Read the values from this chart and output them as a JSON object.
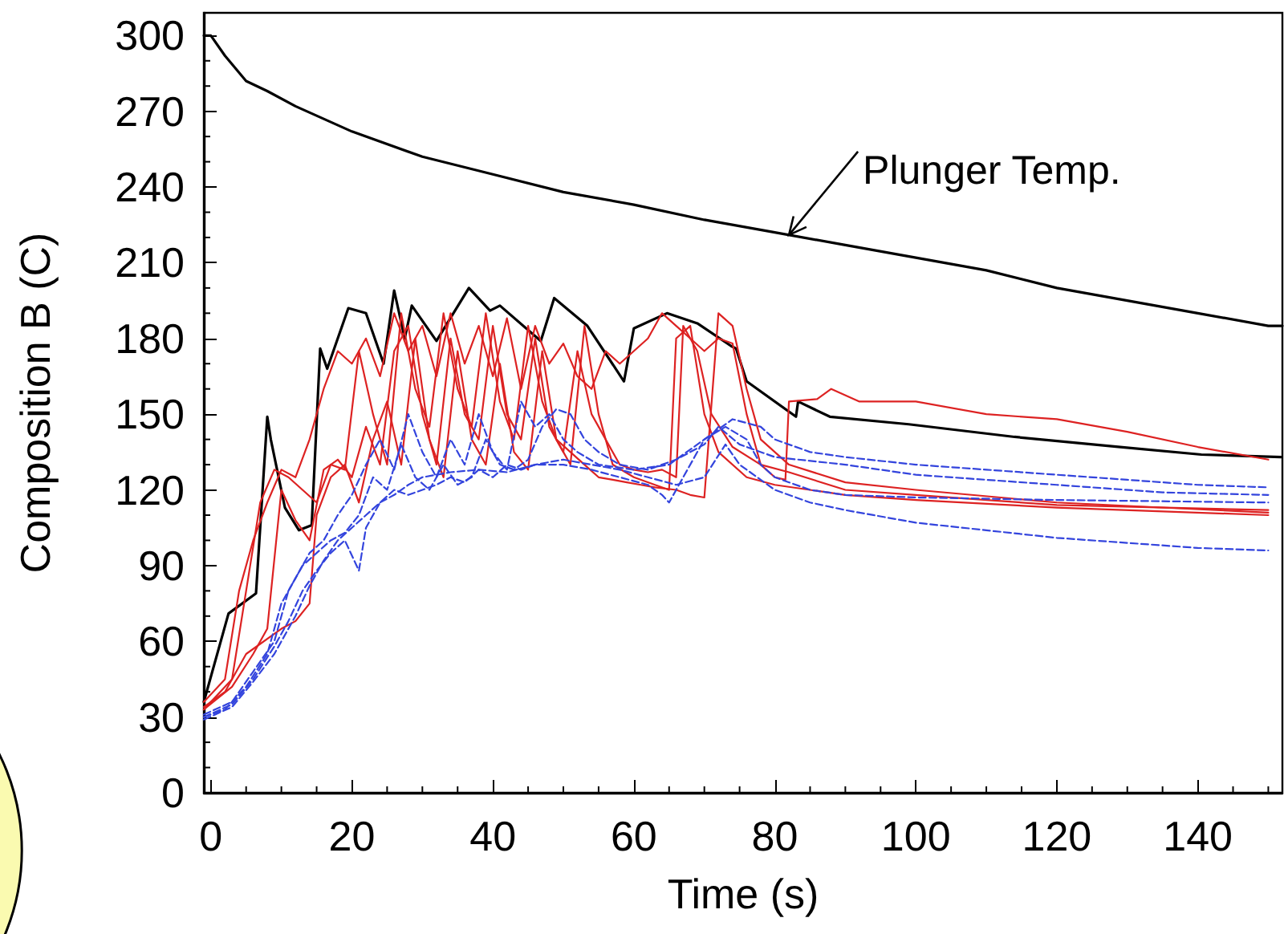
{
  "chart_data": {
    "type": "line",
    "xlabel": "Time (s)",
    "ylabel": "Composition B (C)",
    "xlim": [
      -1,
      152
    ],
    "ylim": [
      0,
      309
    ],
    "xticks": [
      0,
      20,
      40,
      60,
      80,
      100,
      120,
      140
    ],
    "yticks": [
      0,
      30,
      60,
      90,
      120,
      150,
      180,
      210,
      240,
      270,
      300
    ],
    "marker": "none",
    "annotations": [
      {
        "text": "Plunger Temp.",
        "x": 82,
        "y": 221
      }
    ],
    "series": [
      {
        "color": "#000000",
        "line_style": "solid",
        "x": [
          -1,
          0,
          2,
          5,
          8,
          12,
          20,
          30,
          40,
          50,
          60,
          70,
          80,
          90,
          100,
          110,
          120,
          130,
          140,
          150,
          152
        ],
        "values": [
          300,
          300,
          292,
          282,
          278,
          272,
          262,
          252,
          245,
          238,
          233,
          227,
          222,
          217,
          212,
          207,
          200,
          195,
          190,
          185,
          185
        ]
      },
      {
        "color": "#000000",
        "line_style": "solid",
        "x": [
          -1,
          2.5,
          6.4,
          8,
          8.5,
          10.5,
          12.5,
          14.3,
          15.5,
          16.5,
          19.5,
          22,
          24.5,
          26,
          27.5,
          28.5,
          32,
          36.6,
          39.6,
          41,
          46.8,
          48.7,
          53.4,
          58.6,
          60,
          64.7,
          69,
          73.8,
          74.5,
          76,
          83,
          83.3,
          87.8,
          99,
          114,
          129,
          140.5,
          151.8
        ],
        "values": [
          36,
          71,
          79,
          149,
          140,
          113,
          104,
          106,
          176,
          168,
          192,
          190,
          170,
          199,
          180,
          193,
          179,
          200,
          191,
          193,
          179,
          196,
          185,
          163,
          184,
          190,
          186,
          177,
          176,
          163,
          149,
          155,
          149,
          146,
          141,
          137,
          134,
          133
        ]
      },
      {
        "color": "#dd2222",
        "line_style": "solid",
        "x": [
          -1,
          2,
          4,
          6,
          8,
          10,
          12,
          14,
          16,
          18,
          20,
          22,
          24,
          26,
          28,
          30,
          32,
          34,
          36,
          38,
          40,
          42,
          44,
          46,
          48,
          50,
          52,
          54,
          56,
          58,
          60,
          62,
          64,
          66,
          68,
          70,
          72,
          74,
          76,
          78,
          80,
          81.5,
          82,
          86,
          88,
          92,
          100,
          110,
          120,
          130,
          140,
          150
        ],
        "values": [
          36,
          45,
          80,
          100,
          115,
          128,
          125,
          140,
          160,
          175,
          170,
          180,
          165,
          190,
          175,
          185,
          165,
          190,
          170,
          185,
          165,
          188,
          160,
          185,
          170,
          178,
          165,
          160,
          175,
          170,
          175,
          180,
          190,
          185,
          180,
          175,
          180,
          178,
          150,
          130,
          125,
          124,
          155,
          156,
          160,
          155,
          155,
          150,
          148,
          143,
          137,
          132
        ]
      },
      {
        "color": "#dd2222",
        "line_style": "solid",
        "x": [
          -1,
          2,
          5,
          10,
          12,
          14,
          15,
          17,
          19,
          21,
          23,
          25,
          27,
          29,
          31,
          33,
          35,
          37,
          39,
          41,
          43,
          45,
          47,
          49,
          51,
          53,
          55,
          57,
          60,
          63,
          65,
          66,
          68,
          70,
          72,
          76,
          80,
          90,
          100,
          120,
          150
        ],
        "values": [
          34,
          40,
          55,
          65,
          68,
          75,
          110,
          125,
          130,
          115,
          140,
          155,
          130,
          180,
          140,
          125,
          175,
          140,
          130,
          170,
          135,
          128,
          175,
          140,
          130,
          185,
          150,
          130,
          125,
          122,
          120,
          180,
          185,
          150,
          135,
          125,
          122,
          118,
          116,
          113,
          110
        ]
      },
      {
        "color": "#dd2222",
        "line_style": "solid",
        "x": [
          -1,
          3,
          6,
          8,
          10,
          12,
          14,
          16,
          18,
          20,
          22,
          24,
          26,
          28,
          30,
          32,
          34,
          36,
          38,
          40,
          42,
          44,
          46,
          48,
          50,
          52,
          54,
          56,
          58,
          60,
          62,
          64,
          66,
          67,
          69,
          71,
          74,
          78,
          82,
          90,
          100,
          120,
          150
        ],
        "values": [
          33,
          42,
          55,
          65,
          120,
          108,
          100,
          128,
          132,
          125,
          145,
          130,
          175,
          185,
          150,
          130,
          180,
          150,
          140,
          185,
          150,
          140,
          180,
          145,
          135,
          175,
          150,
          140,
          130,
          128,
          127,
          128,
          125,
          185,
          175,
          150,
          137,
          130,
          127,
          120,
          118,
          114,
          112
        ]
      },
      {
        "color": "#dd2222",
        "line_style": "solid",
        "x": [
          -1,
          3,
          5,
          7,
          9,
          11,
          13,
          15,
          17,
          19,
          21,
          23,
          25,
          27,
          29,
          31,
          33,
          35,
          37,
          39,
          41,
          43,
          45,
          47,
          49,
          51,
          53,
          55,
          57,
          59,
          61,
          63,
          66,
          68,
          70,
          72,
          74,
          76,
          78,
          82,
          90,
          100,
          120,
          150
        ],
        "values": [
          33,
          45,
          80,
          115,
          128,
          125,
          120,
          115,
          130,
          128,
          175,
          150,
          130,
          190,
          160,
          145,
          190,
          160,
          145,
          190,
          155,
          140,
          185,
          155,
          140,
          135,
          130,
          125,
          124,
          123,
          122,
          121,
          120,
          118,
          117,
          190,
          185,
          160,
          140,
          130,
          123,
          120,
          115,
          111
        ]
      },
      {
        "color": "#3344dd",
        "line_style": "dashed",
        "x": [
          -1,
          2,
          5,
          8,
          10,
          12,
          14,
          16,
          18,
          20,
          22,
          24,
          26,
          28,
          30,
          32,
          34,
          36,
          38,
          40,
          42,
          44,
          46,
          48,
          50,
          52,
          55,
          60,
          65,
          70,
          74,
          78,
          80,
          85,
          90,
          100,
          110,
          120,
          130,
          140,
          150
        ],
        "values": [
          30,
          33,
          42,
          55,
          75,
          85,
          95,
          100,
          110,
          118,
          130,
          140,
          128,
          150,
          135,
          125,
          140,
          130,
          150,
          135,
          128,
          155,
          145,
          150,
          140,
          135,
          130,
          128,
          130,
          140,
          148,
          145,
          140,
          135,
          133,
          130,
          128,
          126,
          124,
          122,
          121
        ]
      },
      {
        "color": "#3344dd",
        "line_style": "dashed",
        "x": [
          -1,
          3,
          6,
          9,
          11,
          13,
          15,
          17,
          19,
          21,
          23,
          25,
          27,
          29,
          31,
          33,
          35,
          37,
          39,
          41,
          43,
          45,
          47,
          49,
          51,
          53,
          55,
          58,
          62,
          66,
          70,
          72,
          75,
          80,
          90,
          100,
          110,
          120,
          135,
          150
        ],
        "values": [
          31,
          36,
          48,
          60,
          80,
          90,
          95,
          100,
          103,
          110,
          125,
          120,
          138,
          125,
          120,
          130,
          122,
          125,
          140,
          130,
          128,
          132,
          145,
          152,
          150,
          140,
          135,
          130,
          128,
          132,
          138,
          145,
          138,
          133,
          130,
          126,
          124,
          122,
          119,
          118
        ]
      },
      {
        "color": "#3344dd",
        "line_style": "dashed",
        "x": [
          -1,
          3,
          6,
          9,
          11,
          13,
          15,
          17,
          19,
          21,
          22,
          24,
          26,
          28,
          30,
          32,
          34,
          36,
          38,
          40,
          42,
          44,
          46,
          50,
          54,
          58,
          62,
          64,
          65,
          67,
          70,
          73,
          76,
          78,
          80,
          85,
          90,
          100,
          120,
          150
        ],
        "values": [
          30,
          35,
          45,
          58,
          68,
          80,
          88,
          95,
          100,
          88,
          105,
          115,
          120,
          118,
          120,
          122,
          125,
          123,
          128,
          125,
          130,
          128,
          130,
          130,
          128,
          125,
          122,
          118,
          115,
          125,
          140,
          145,
          140,
          130,
          125,
          120,
          118,
          117,
          116,
          115
        ]
      },
      {
        "color": "#3344dd",
        "line_style": "dashed",
        "x": [
          -1,
          3,
          6,
          9,
          12,
          14,
          16,
          18,
          20,
          22,
          24,
          26,
          28,
          30,
          34,
          38,
          42,
          46,
          50,
          54,
          58,
          62,
          66,
          70,
          73,
          75,
          80,
          85,
          90,
          100,
          110,
          120,
          130,
          140,
          150
        ],
        "values": [
          29,
          34,
          44,
          55,
          70,
          82,
          92,
          100,
          105,
          110,
          115,
          118,
          122,
          125,
          127,
          128,
          127,
          130,
          132,
          130,
          128,
          125,
          122,
          125,
          138,
          130,
          120,
          115,
          112,
          107,
          104,
          101,
          99,
          97,
          96
        ]
      }
    ]
  }
}
